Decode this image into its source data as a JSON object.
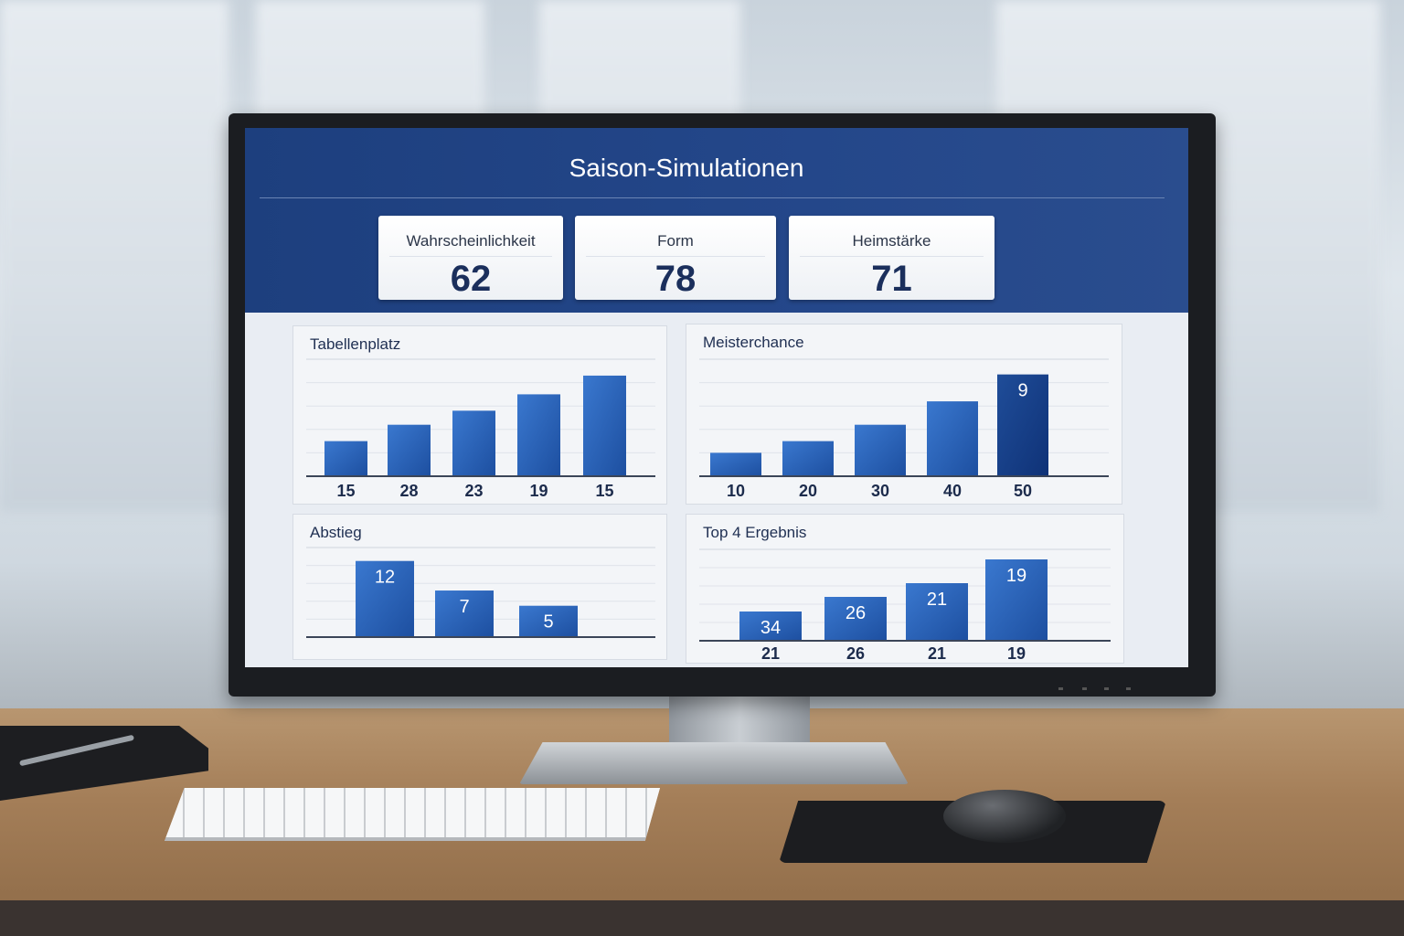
{
  "dashboard": {
    "title": "Saison-Simulationen",
    "kpis": [
      {
        "label": "Wahrscheinlichkeit",
        "value": "62"
      },
      {
        "label": "Form",
        "value": "78"
      },
      {
        "label": "Heimstärke",
        "value": "71"
      }
    ]
  },
  "colors": {
    "header": "#1d3f7e",
    "bar": "#2f63b5",
    "bar_dark": "#173f85",
    "panel": "#f3f5f8"
  },
  "chart_data": [
    {
      "type": "bar",
      "title": "Tabellenplatz",
      "categories": [
        "15",
        "28",
        "23",
        "19",
        "15"
      ],
      "bar_level_pct": [
        30,
        44,
        56,
        70,
        86
      ],
      "bar_labels": [],
      "grid": true
    },
    {
      "type": "bar",
      "title": "Meisterchance",
      "categories": [
        "10",
        "20",
        "30",
        "40",
        "50"
      ],
      "bar_level_pct": [
        20,
        30,
        44,
        64,
        87
      ],
      "bar_labels": [
        "",
        "",
        "",
        "",
        "9"
      ],
      "grid": true
    },
    {
      "type": "bar",
      "title": "Abstieg",
      "categories": [],
      "bar_level_pct": [
        85,
        52,
        35
      ],
      "bar_labels": [
        "12",
        "7",
        "5"
      ],
      "grid": true
    },
    {
      "type": "bar",
      "title": "Top 4 Ergebnis",
      "categories": [
        "21",
        "26",
        "21",
        "19"
      ],
      "bar_level_pct": [
        32,
        48,
        63,
        89
      ],
      "bar_labels": [
        "34",
        "26",
        "21",
        "19"
      ],
      "grid": true
    }
  ]
}
